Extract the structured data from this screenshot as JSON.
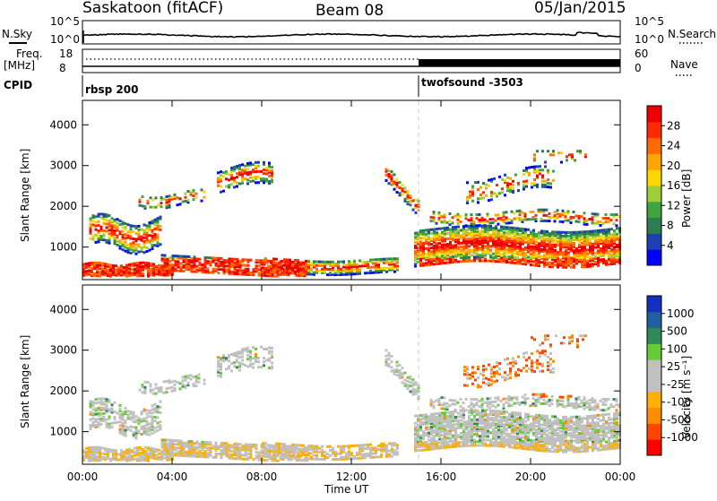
{
  "header": {
    "station": "Saskatoon (fitACF)",
    "beam": "Beam 08",
    "date": "05/Jan/2015"
  },
  "top_panels": {
    "nsky_label": "N.Sky",
    "nsky_ticks": [
      "10^5",
      "10^0"
    ],
    "nsearch_label": "N.Search",
    "nsearch_ticks": [
      "10^5",
      "10^0"
    ],
    "freq_label_1": "Freq.",
    "freq_label_2": "[MHz]",
    "freq_ticks": [
      "18",
      "8"
    ],
    "nave_label": "Nave",
    "nave_ticks": [
      "60",
      "0"
    ],
    "cpid_label": "CPID",
    "cpid_segments": [
      {
        "label": "rbsp 200",
        "start_hour": 0
      },
      {
        "label": "twofsound -3503",
        "start_hour": 15
      }
    ]
  },
  "chart_data": [
    {
      "type": "heatmap",
      "name": "power",
      "ylabel": "Slant Range [km]",
      "xlabel": "",
      "yticks": [
        "1000",
        "2000",
        "3000",
        "4000"
      ],
      "ylim": [
        200,
        4600
      ],
      "xlim": [
        0,
        24
      ],
      "colorbar_label": "Power [dB]",
      "colorbar_ticks": [
        "28",
        "24",
        "20",
        "16",
        "12",
        "8",
        "4"
      ],
      "colorbar_colors": [
        "#0000ff",
        "#1f3fb4",
        "#2e7d52",
        "#3fa33f",
        "#9fce3a",
        "#ffd700",
        "#ffa500",
        "#ff6a00",
        "#ff2a00",
        "#ee0000"
      ]
    },
    {
      "type": "heatmap",
      "name": "velocity",
      "ylabel": "Slant Range [km]",
      "xlabel": "Time UT",
      "yticks": [
        "1000",
        "2000",
        "3000",
        "4000"
      ],
      "ylim": [
        200,
        4600
      ],
      "xlim": [
        0,
        24
      ],
      "xticks": [
        "00:00",
        "04:00",
        "08:00",
        "12:00",
        "16:00",
        "20:00",
        "00:00"
      ],
      "colorbar_label": "Velocity [m s⁻¹]",
      "colorbar_ticks": [
        "1000",
        "500",
        "100",
        "25",
        "-25",
        "-100",
        "-500",
        "-1000"
      ],
      "colorbar_colors": [
        "#ff0000",
        "#ff4500",
        "#ff8c00",
        "#ffb000",
        "#c0c0c0",
        "#c0c0c0",
        "#66cc33",
        "#2e8b57",
        "#2060a0",
        "#1530c0"
      ]
    }
  ]
}
